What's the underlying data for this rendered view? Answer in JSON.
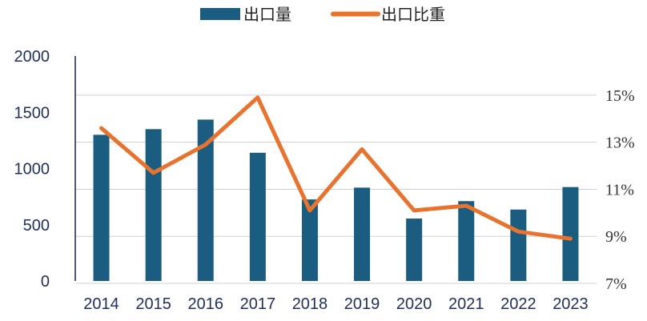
{
  "chart_data": {
    "type": "bar",
    "categories": [
      "2014",
      "2015",
      "2016",
      "2017",
      "2018",
      "2019",
      "2020",
      "2021",
      "2022",
      "2023"
    ],
    "series": [
      {
        "name": "出口量",
        "type": "bar",
        "axis": "left",
        "color": "#1a5d80",
        "values": [
          1300,
          1350,
          1435,
          1140,
          725,
          830,
          555,
          710,
          635,
          835
        ]
      },
      {
        "name": "出口比重",
        "type": "line",
        "axis": "right",
        "color": "#e8732e",
        "values": [
          13.6,
          11.7,
          12.9,
          14.9,
          10.1,
          12.7,
          10.1,
          10.3,
          9.2,
          8.9
        ]
      }
    ],
    "y_left": {
      "ylim": [
        0,
        2000
      ],
      "ticks": [
        "0",
        "500",
        "1000",
        "1500",
        "2000"
      ]
    },
    "y_right": {
      "ylim": [
        7,
        16.8
      ],
      "ticks": [
        "7%",
        "9%",
        "11%",
        "13%",
        "15%"
      ],
      "tick_values": [
        7,
        9,
        11,
        13,
        15
      ]
    },
    "legend_position": "top-center",
    "grid": "horizontal"
  }
}
